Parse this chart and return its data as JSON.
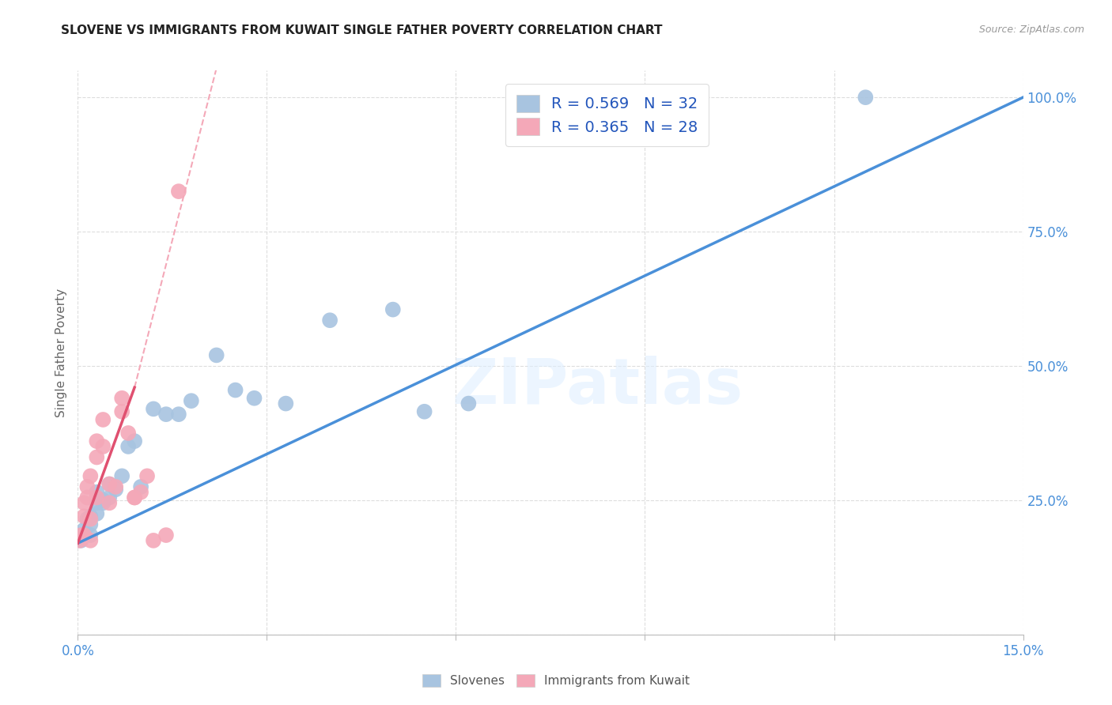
{
  "title": "SLOVENE VS IMMIGRANTS FROM KUWAIT SINGLE FATHER POVERTY CORRELATION CHART",
  "source": "Source: ZipAtlas.com",
  "ylabel_label": "Single Father Poverty",
  "x_min": 0.0,
  "x_max": 0.15,
  "y_min": 0.0,
  "y_max": 1.05,
  "x_ticks": [
    0.0,
    0.03,
    0.06,
    0.09,
    0.12,
    0.15
  ],
  "y_ticks": [
    0.0,
    0.25,
    0.5,
    0.75,
    1.0
  ],
  "blue_R": 0.569,
  "blue_N": 32,
  "pink_R": 0.365,
  "pink_N": 28,
  "blue_color": "#a8c4e0",
  "pink_color": "#f4a8b8",
  "trendline_blue_color": "#4a90d9",
  "trendline_pink_color": "#e05070",
  "watermark": "ZIPatlas",
  "legend_blue_label": "Slovenes",
  "legend_pink_label": "Immigrants from Kuwait",
  "blue_scatter_x": [
    0.0005,
    0.001,
    0.001,
    0.0015,
    0.002,
    0.002,
    0.002,
    0.003,
    0.003,
    0.003,
    0.004,
    0.004,
    0.005,
    0.005,
    0.006,
    0.007,
    0.008,
    0.009,
    0.01,
    0.012,
    0.014,
    0.016,
    0.018,
    0.022,
    0.025,
    0.028,
    0.033,
    0.04,
    0.05,
    0.055,
    0.062,
    0.125
  ],
  "blue_scatter_y": [
    0.175,
    0.185,
    0.195,
    0.215,
    0.205,
    0.185,
    0.22,
    0.245,
    0.225,
    0.265,
    0.25,
    0.245,
    0.255,
    0.28,
    0.27,
    0.295,
    0.35,
    0.36,
    0.275,
    0.42,
    0.41,
    0.41,
    0.435,
    0.52,
    0.455,
    0.44,
    0.43,
    0.585,
    0.605,
    0.415,
    0.43,
    1.0
  ],
  "pink_scatter_x": [
    0.0003,
    0.0005,
    0.001,
    0.001,
    0.001,
    0.0015,
    0.0015,
    0.002,
    0.002,
    0.002,
    0.003,
    0.003,
    0.003,
    0.004,
    0.004,
    0.005,
    0.005,
    0.006,
    0.007,
    0.007,
    0.008,
    0.009,
    0.009,
    0.01,
    0.011,
    0.012,
    0.014,
    0.016
  ],
  "pink_scatter_y": [
    0.175,
    0.185,
    0.22,
    0.245,
    0.185,
    0.255,
    0.275,
    0.175,
    0.215,
    0.295,
    0.255,
    0.33,
    0.36,
    0.35,
    0.4,
    0.245,
    0.28,
    0.275,
    0.415,
    0.44,
    0.375,
    0.255,
    0.255,
    0.265,
    0.295,
    0.175,
    0.185,
    0.825
  ],
  "blue_line_x": [
    0.0,
    0.15
  ],
  "blue_line_y": [
    0.17,
    1.0
  ],
  "pink_line_x": [
    0.0,
    0.009
  ],
  "pink_line_y": [
    0.17,
    0.46
  ],
  "dashed_line_x": [
    0.009,
    0.03
  ],
  "dashed_line_y": [
    0.46,
    1.42
  ]
}
